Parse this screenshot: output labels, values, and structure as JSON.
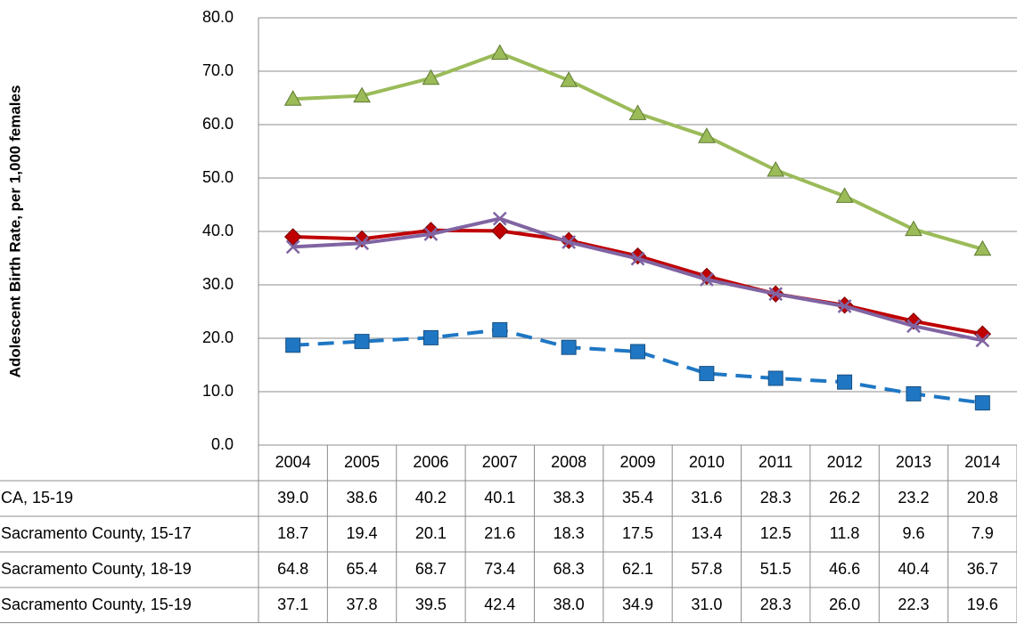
{
  "chart_data": {
    "type": "line",
    "y_axis_label": "Adolescent Birth Rate, per 1,000 females",
    "categories": [
      "2004",
      "2005",
      "2006",
      "2007",
      "2008",
      "2009",
      "2010",
      "2011",
      "2012",
      "2013",
      "2014"
    ],
    "ylim": [
      0,
      80
    ],
    "yticks": [
      {
        "value": 0,
        "label": "0.0"
      },
      {
        "value": 10,
        "label": "10.0"
      },
      {
        "value": 20,
        "label": "20.0"
      },
      {
        "value": 30,
        "label": "30.0"
      },
      {
        "value": 40,
        "label": "40.0"
      },
      {
        "value": 50,
        "label": "50.0"
      },
      {
        "value": 60,
        "label": "60.0"
      },
      {
        "value": 70,
        "label": "70.0"
      },
      {
        "value": 80,
        "label": "80.0"
      }
    ],
    "grid": true,
    "series": [
      {
        "name": "CA, 15-19",
        "color": "#c00000",
        "marker": "diamond",
        "dashed": false,
        "values": [
          39.0,
          38.6,
          40.2,
          40.1,
          38.3,
          35.4,
          31.6,
          28.3,
          26.2,
          23.2,
          20.8
        ],
        "value_labels": [
          "39.0",
          "38.6",
          "40.2",
          "40.1",
          "38.3",
          "35.4",
          "31.6",
          "28.3",
          "26.2",
          "23.2",
          "20.8"
        ]
      },
      {
        "name": "Sacramento County, 15-17",
        "color": "#1f77c4",
        "marker": "square",
        "dashed": true,
        "values": [
          18.7,
          19.4,
          20.1,
          21.6,
          18.3,
          17.5,
          13.4,
          12.5,
          11.8,
          9.6,
          7.9
        ],
        "value_labels": [
          "18.7",
          "19.4",
          "20.1",
          "21.6",
          "18.3",
          "17.5",
          "13.4",
          "12.5",
          "11.8",
          "9.6",
          "7.9"
        ]
      },
      {
        "name": "Sacramento County, 18-19",
        "color": "#9bbb59",
        "marker": "triangle",
        "dashed": false,
        "values": [
          64.8,
          65.4,
          68.7,
          73.4,
          68.3,
          62.1,
          57.8,
          51.5,
          46.6,
          40.4,
          36.7
        ],
        "value_labels": [
          "64.8",
          "65.4",
          "68.7",
          "73.4",
          "68.3",
          "62.1",
          "57.8",
          "51.5",
          "46.6",
          "40.4",
          "36.7"
        ]
      },
      {
        "name": "Sacramento County, 15-19",
        "color": "#8064a2",
        "marker": "x",
        "dashed": false,
        "values": [
          37.1,
          37.8,
          39.5,
          42.4,
          38.0,
          34.9,
          31.0,
          28.3,
          26.0,
          22.3,
          19.6
        ],
        "value_labels": [
          "37.1",
          "37.8",
          "39.5",
          "42.4",
          "38.0",
          "34.9",
          "31.0",
          "28.3",
          "26.0",
          "22.3",
          "19.6"
        ]
      }
    ]
  }
}
